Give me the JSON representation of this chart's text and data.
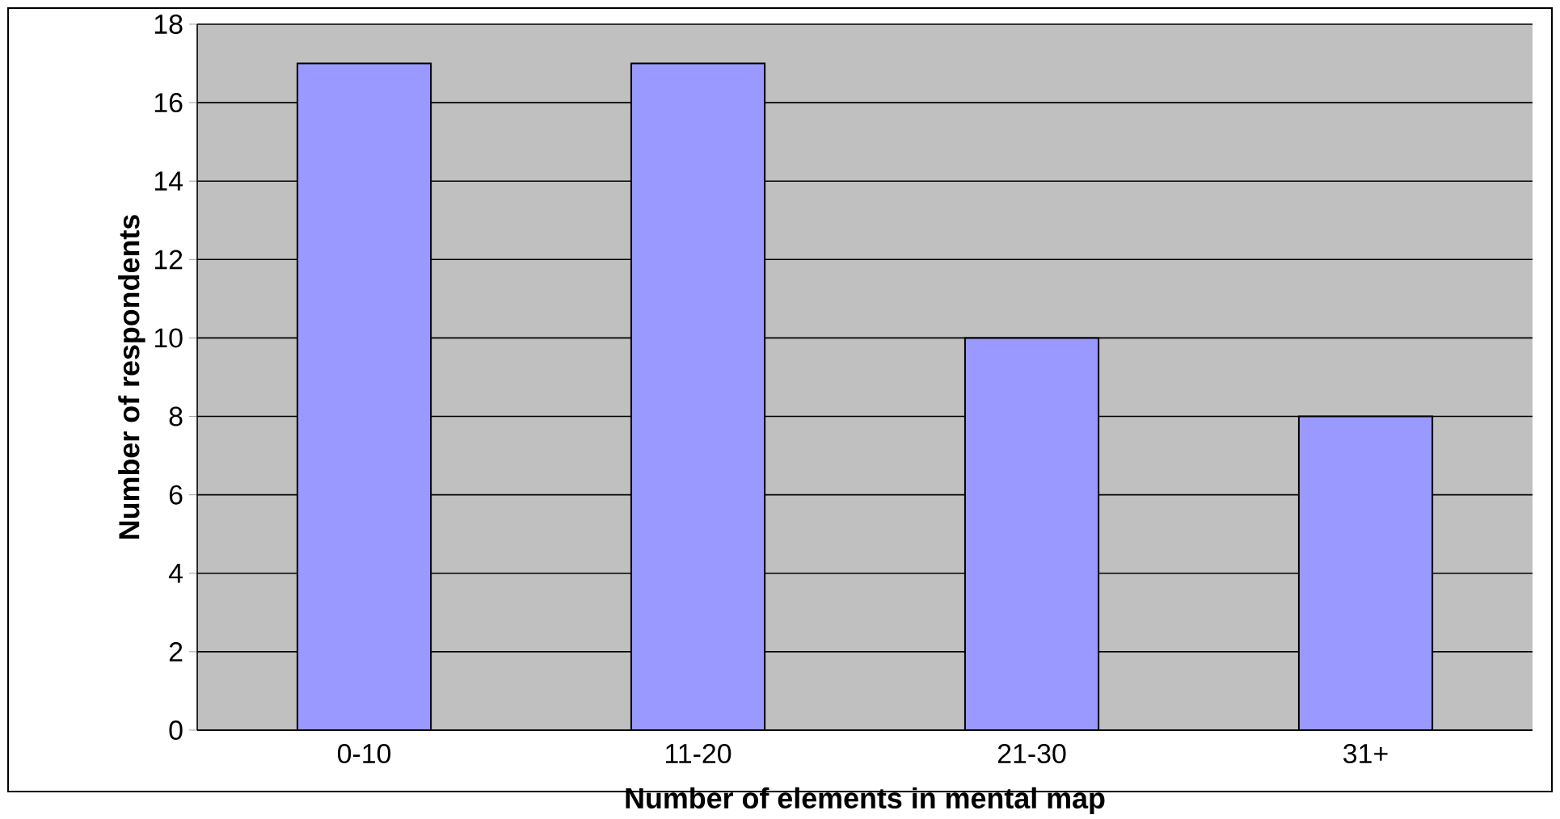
{
  "chart_data": {
    "type": "bar",
    "xlabel": "Number of elements in mental map",
    "ylabel": "Number of respondents",
    "categories": [
      "0-10",
      "11-20",
      "21-30",
      "31+"
    ],
    "values": [
      17,
      17,
      10,
      8
    ],
    "color": "#9999ff",
    "ylim": [
      0,
      18
    ],
    "yticks": [
      0,
      2,
      4,
      6,
      8,
      10,
      12,
      14,
      16,
      18
    ],
    "grid": "y"
  }
}
